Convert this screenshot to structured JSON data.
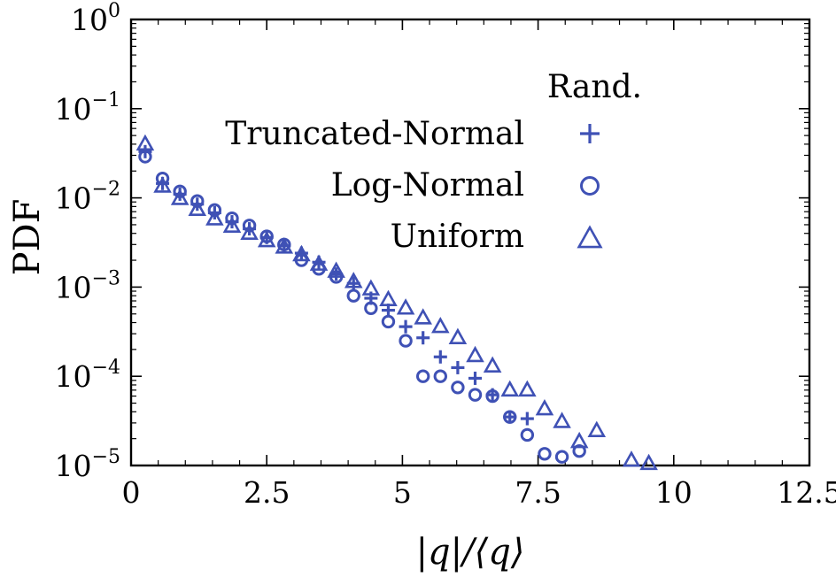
{
  "chart_data": {
    "type": "scatter",
    "title": "",
    "xlabel": "|q|/⟨q⟩",
    "ylabel": "PDF",
    "xlim": [
      0,
      12.5
    ],
    "ylim": [
      1e-05,
      1
    ],
    "yscale": "log",
    "grid": false,
    "x_ticks": [
      "0",
      "2.5",
      "5",
      "7.5",
      "10",
      "12.5"
    ],
    "y_ticks": [
      {
        "base": "10",
        "exp": "0"
      },
      {
        "base": "10",
        "exp": "−1"
      },
      {
        "base": "10",
        "exp": "−2"
      },
      {
        "base": "10",
        "exp": "−3"
      },
      {
        "base": "10",
        "exp": "−4"
      },
      {
        "base": "10",
        "exp": "−5"
      }
    ],
    "color": "#3F51B5",
    "legend": {
      "title": "Rand.",
      "placement": "top-right"
    },
    "series": [
      {
        "name": "Truncated-Normal",
        "marker": "plus",
        "x": [
          0.26,
          0.58,
          0.9,
          1.22,
          1.54,
          1.86,
          2.18,
          2.5,
          2.82,
          3.14,
          3.46,
          3.78,
          4.1,
          4.42,
          4.74,
          5.06,
          5.38,
          5.7,
          6.02,
          6.34,
          6.66,
          6.98,
          7.3
        ],
        "y": [
          0.033,
          0.0145,
          0.011,
          0.0085,
          0.0068,
          0.0054,
          0.0045,
          0.0036,
          0.0029,
          0.0024,
          0.0019,
          0.0014,
          0.0011,
          0.00075,
          0.00055,
          0.00036,
          0.00027,
          0.000165,
          0.000125,
          9.5e-05,
          6.2e-05,
          3.5e-05,
          3.35e-05
        ]
      },
      {
        "name": "Log-Normal",
        "marker": "circle",
        "x": [
          0.26,
          0.58,
          0.9,
          1.22,
          1.54,
          1.86,
          2.18,
          2.5,
          2.82,
          3.14,
          3.46,
          3.78,
          4.1,
          4.42,
          4.74,
          5.06,
          5.38,
          5.7,
          6.02,
          6.34,
          6.66,
          6.98,
          7.3,
          7.62,
          7.94,
          8.26
        ],
        "y": [
          0.029,
          0.0165,
          0.0118,
          0.0092,
          0.0073,
          0.0059,
          0.0049,
          0.0037,
          0.003,
          0.002,
          0.0016,
          0.0013,
          0.0008,
          0.00058,
          0.00041,
          0.00025,
          0.0001,
          0.0001,
          7.5e-05,
          6.2e-05,
          6e-05,
          3.5e-05,
          2.2e-05,
          1.35e-05,
          1.25e-05,
          1.45e-05
        ]
      },
      {
        "name": "Uniform",
        "marker": "triangle",
        "x": [
          0.26,
          0.58,
          0.9,
          1.22,
          1.54,
          1.86,
          2.18,
          2.5,
          2.82,
          3.14,
          3.46,
          3.78,
          4.1,
          4.42,
          4.74,
          5.06,
          5.38,
          5.7,
          6.02,
          6.34,
          6.66,
          6.98,
          7.3,
          7.62,
          7.94,
          8.26,
          8.58,
          9.22,
          9.54
        ],
        "y": [
          0.04,
          0.0135,
          0.0098,
          0.0074,
          0.0058,
          0.0048,
          0.004,
          0.0033,
          0.0028,
          0.0023,
          0.0018,
          0.0015,
          0.00115,
          0.00095,
          0.00072,
          0.00058,
          0.00045,
          0.00036,
          0.00027,
          0.00017,
          0.00013,
          7e-05,
          7e-05,
          4.3e-05,
          3.1e-05,
          1.85e-05,
          2.45e-05,
          1.14e-05,
          1.05e-05
        ]
      }
    ]
  }
}
